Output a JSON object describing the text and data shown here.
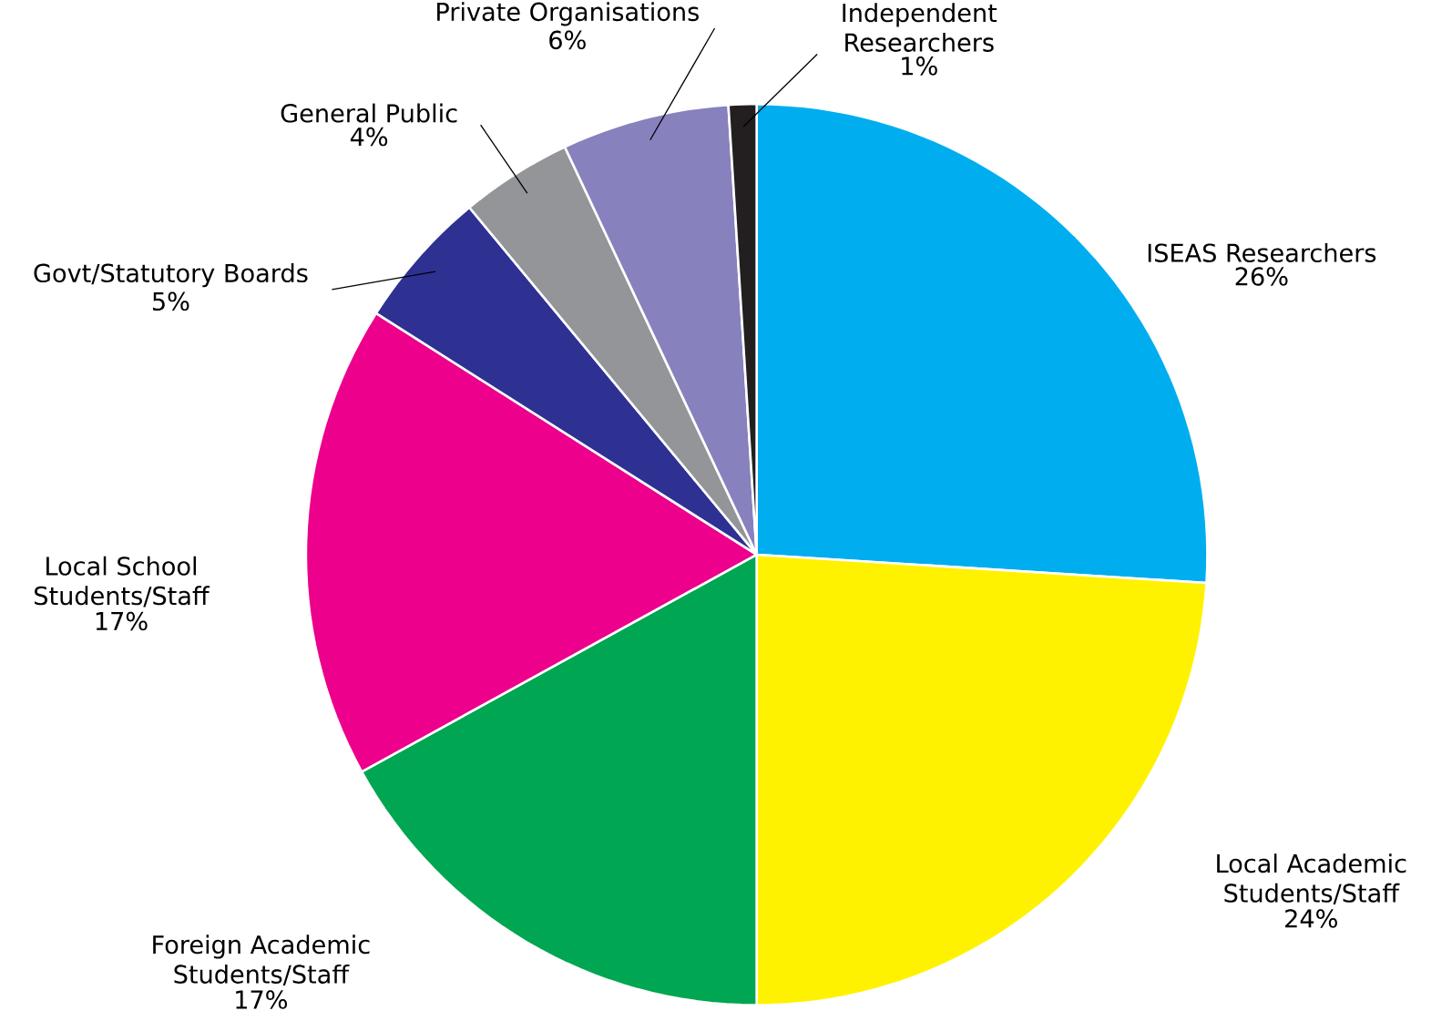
{
  "chart_data": {
    "type": "pie",
    "categories": [
      "ISEAS Researchers",
      "Local Academic Students/Staff",
      "Foreign Academic Students/Staff",
      "Local School Students/Staff",
      "Govt/Statutory Boards",
      "General Public",
      "Private Organisations",
      "Independent Researchers"
    ],
    "values": [
      26,
      24,
      17,
      17,
      5,
      4,
      6,
      1
    ],
    "value_labels": [
      "26%",
      "24%",
      "17%",
      "17%",
      "5%",
      "4%",
      "6%",
      "1%"
    ],
    "colors": [
      "#00aeef",
      "#fff200",
      "#00a651",
      "#ec008c",
      "#2e3192",
      "#939598",
      "#8781bd",
      "#231f20"
    ]
  }
}
